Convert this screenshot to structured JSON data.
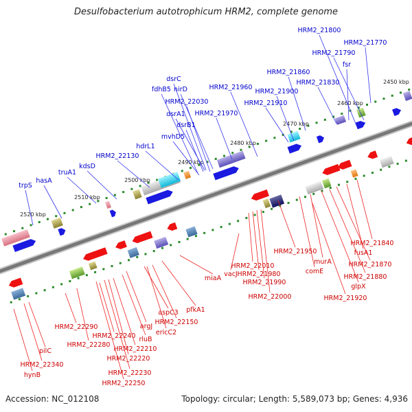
{
  "title": "Desulfobacterium autotrophicum HRM2, complete genome",
  "footer": {
    "accession": "Accession: NC_012108",
    "stats": "Topology: circular; Length: 5,589,073 bp; Genes: 4,936"
  },
  "colors": {
    "top_strand_label": "#0000cc",
    "bottom_strand_label": "#cc0000",
    "backbone": "#777777",
    "tick": "#2a8a2a"
  },
  "ticks": [
    {
      "label": "2450 kbp"
    },
    {
      "label": "2460 kbp"
    },
    {
      "label": "2470 kbp"
    },
    {
      "label": "2480 kbp"
    },
    {
      "label": "2490 kbp"
    },
    {
      "label": "2500 kbp"
    },
    {
      "label": "2510 kbp"
    },
    {
      "label": "2520 kbp"
    }
  ],
  "top_genes": [
    {
      "label": "HRM2_21800"
    },
    {
      "label": "HRM2_21770"
    },
    {
      "label": "HRM2_21790"
    },
    {
      "label": "fsr"
    },
    {
      "label": "HRM2_21860"
    },
    {
      "label": "HRM2_21830"
    },
    {
      "label": "HRM2_21960"
    },
    {
      "label": "HRM2_21900"
    },
    {
      "label": "dsrC"
    },
    {
      "label": "fdhB5"
    },
    {
      "label": "nirD"
    },
    {
      "label": "HRM2_22030"
    },
    {
      "label": "HRM2_21910"
    },
    {
      "label": "dsrA1"
    },
    {
      "label": "HRM2_21970"
    },
    {
      "label": "dsrB1"
    },
    {
      "label": "mvhD5"
    },
    {
      "label": "hdrL1"
    },
    {
      "label": "HRM2_22130"
    },
    {
      "label": "kdsD"
    },
    {
      "label": "truA1"
    },
    {
      "label": "hasA"
    },
    {
      "label": "trpS"
    }
  ],
  "bottom_genes": [
    {
      "label": "HRM2_21840"
    },
    {
      "label": "fusA1"
    },
    {
      "label": "HRM2_21950"
    },
    {
      "label": "murA"
    },
    {
      "label": "HRM2_21870"
    },
    {
      "label": "comE"
    },
    {
      "label": "HRM2_21880"
    },
    {
      "label": "glpX"
    },
    {
      "label": "HRM2_22010"
    },
    {
      "label": "HRM2_21980"
    },
    {
      "label": "vacJ"
    },
    {
      "label": "HRM2_21990"
    },
    {
      "label": "miaA"
    },
    {
      "label": "HRM2_22000"
    },
    {
      "label": "HRM2_21920"
    },
    {
      "label": "pfkA1"
    },
    {
      "label": "aspC3"
    },
    {
      "label": "HRM2_22150"
    },
    {
      "label": "argJ"
    },
    {
      "label": "ericC2"
    },
    {
      "label": "HRM2_22290"
    },
    {
      "label": "HRM2_22240"
    },
    {
      "label": "rluB"
    },
    {
      "label": "HRM2_22280"
    },
    {
      "label": "HRM2_22210"
    },
    {
      "label": "HRM2_22220"
    },
    {
      "label": "pilC"
    },
    {
      "label": "HRM2_22340"
    },
    {
      "label": "HRM2_22230"
    },
    {
      "label": "hynB"
    },
    {
      "label": "HRM2_22250"
    }
  ]
}
